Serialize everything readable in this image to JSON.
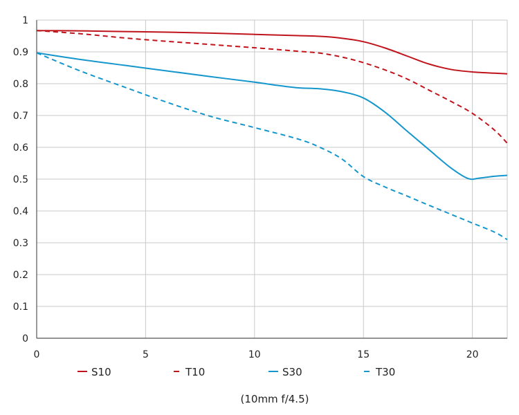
{
  "chart_data": {
    "type": "line",
    "caption": "(10mm f/4.5)",
    "xlim": [
      0,
      21.6
    ],
    "ylim": [
      0,
      1
    ],
    "x_ticks": [
      "0",
      "5",
      "10",
      "15",
      "20"
    ],
    "y_ticks": [
      "0",
      "0.1",
      "0.2",
      "0.3",
      "0.4",
      "0.5",
      "0.6",
      "0.7",
      "0.8",
      "0.9",
      "1"
    ],
    "grid": true,
    "legend_position": "bottom",
    "series": [
      {
        "name": "S10",
        "color": "#c0141c",
        "dash": "solid",
        "points": [
          [
            0,
            0.967
          ],
          [
            2,
            0.966
          ],
          [
            4,
            0.964
          ],
          [
            6,
            0.962
          ],
          [
            8,
            0.959
          ],
          [
            10,
            0.955
          ],
          [
            12,
            0.951
          ],
          [
            13,
            0.949
          ],
          [
            14,
            0.943
          ],
          [
            15,
            0.932
          ],
          [
            16,
            0.912
          ],
          [
            17,
            0.887
          ],
          [
            18,
            0.862
          ],
          [
            19,
            0.845
          ],
          [
            20,
            0.837
          ],
          [
            21,
            0.833
          ],
          [
            21.6,
            0.831
          ]
        ]
      },
      {
        "name": "T10",
        "color": "#c0141c",
        "dash": "dashed",
        "points": [
          [
            0,
            0.967
          ],
          [
            2,
            0.957
          ],
          [
            4,
            0.944
          ],
          [
            6,
            0.933
          ],
          [
            8,
            0.923
          ],
          [
            10,
            0.913
          ],
          [
            12,
            0.902
          ],
          [
            13,
            0.896
          ],
          [
            14,
            0.884
          ],
          [
            15,
            0.866
          ],
          [
            16,
            0.843
          ],
          [
            17,
            0.815
          ],
          [
            18,
            0.78
          ],
          [
            19,
            0.745
          ],
          [
            20,
            0.707
          ],
          [
            21,
            0.655
          ],
          [
            21.6,
            0.613
          ]
        ]
      },
      {
        "name": "S30",
        "color": "#1496cc",
        "dash": "solid",
        "points": [
          [
            0,
            0.897
          ],
          [
            2,
            0.876
          ],
          [
            4,
            0.858
          ],
          [
            6,
            0.84
          ],
          [
            8,
            0.822
          ],
          [
            10,
            0.805
          ],
          [
            11,
            0.795
          ],
          [
            12,
            0.787
          ],
          [
            13,
            0.784
          ],
          [
            14,
            0.775
          ],
          [
            15,
            0.755
          ],
          [
            16,
            0.71
          ],
          [
            17,
            0.651
          ],
          [
            18,
            0.593
          ],
          [
            19,
            0.536
          ],
          [
            19.8,
            0.502
          ],
          [
            20.3,
            0.503
          ],
          [
            21,
            0.509
          ],
          [
            21.6,
            0.512
          ]
        ]
      },
      {
        "name": "T30",
        "color": "#1496cc",
        "dash": "dashed",
        "points": [
          [
            0,
            0.897
          ],
          [
            2,
            0.84
          ],
          [
            4,
            0.79
          ],
          [
            6,
            0.741
          ],
          [
            8,
            0.697
          ],
          [
            10,
            0.662
          ],
          [
            12,
            0.626
          ],
          [
            13,
            0.6
          ],
          [
            14,
            0.564
          ],
          [
            15,
            0.508
          ],
          [
            16,
            0.475
          ],
          [
            17,
            0.447
          ],
          [
            18,
            0.418
          ],
          [
            19,
            0.39
          ],
          [
            20,
            0.362
          ],
          [
            21,
            0.334
          ],
          [
            21.6,
            0.31
          ]
        ]
      }
    ]
  }
}
